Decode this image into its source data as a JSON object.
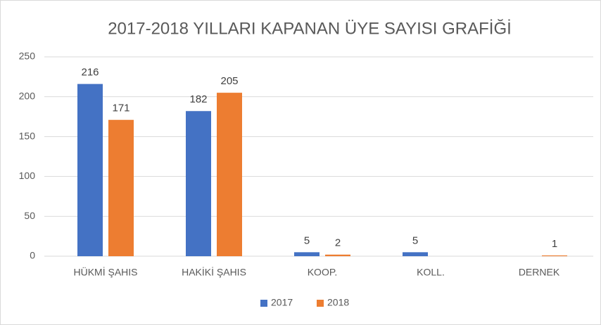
{
  "chart_data": {
    "type": "bar",
    "title": "2017-2018 YILLARI KAPANAN ÜYE SAYISI GRAFİĞİ",
    "categories": [
      "HÜKMİ ŞAHIS",
      "HAKİKİ ŞAHIS",
      "KOOP.",
      "KOLL.",
      "DERNEK"
    ],
    "series": [
      {
        "name": "2017",
        "color": "#4472c4",
        "values": [
          216,
          182,
          5,
          5,
          null
        ]
      },
      {
        "name": "2018",
        "color": "#ed7d31",
        "values": [
          171,
          205,
          2,
          null,
          1
        ]
      }
    ],
    "ylim": [
      0,
      250
    ],
    "yticks": [
      0,
      50,
      100,
      150,
      200,
      250
    ],
    "grid": true,
    "legend": "bottom"
  }
}
